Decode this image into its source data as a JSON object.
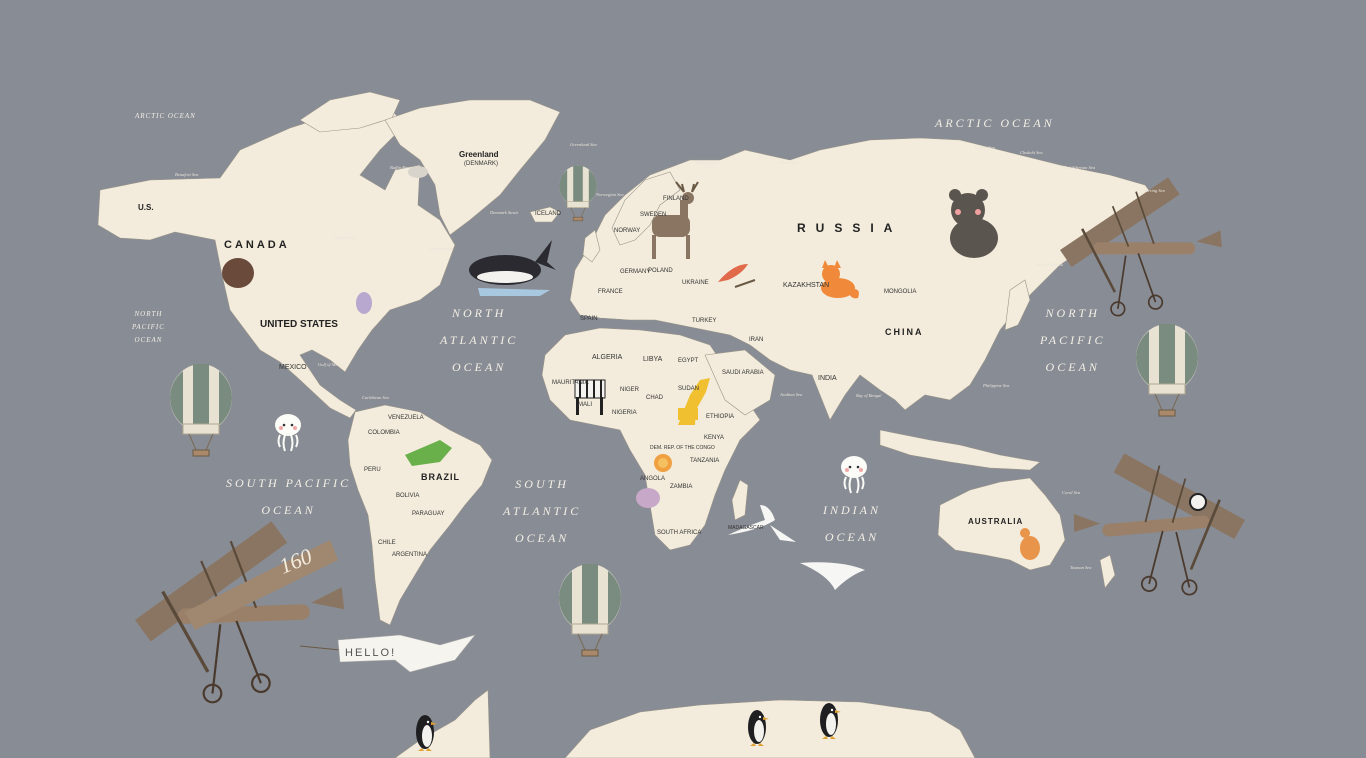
{
  "colors": {
    "sea": "#888c94",
    "land": "#f3ecdc",
    "border": "#9a948a",
    "plane": "#8a7562",
    "balloon_stripe": "#7a8c80"
  },
  "countries": {
    "canada": "CANADA",
    "us_alaska": "U.S.",
    "united_states": "UNITED STATES",
    "mexico": "MEXICO",
    "greenland": "Greenland",
    "greenland_sub": "(DENMARK)",
    "iceland": "ICELAND",
    "russia": "RUSSIA",
    "kazakhstan": "KAZAKHSTAN",
    "mongolia": "MONGOLIA",
    "china": "CHINA",
    "india": "INDIA",
    "iran": "IRAN",
    "saudi_arabia": "SAUDI ARABIA",
    "turkey": "TURKEY",
    "spain": "SPAIN",
    "france": "FRANCE",
    "germany": "GERMANY",
    "poland": "POLAND",
    "ukraine": "UKRAINE",
    "norway": "NORWAY",
    "sweden": "SWEDEN",
    "finland": "FINLAND",
    "algeria": "ALGERIA",
    "libya": "LIBYA",
    "egypt": "EGYPT",
    "niger": "NIGER",
    "chad": "CHAD",
    "sudan": "SUDAN",
    "ethiopia": "ETHIOPIA",
    "mali": "MALI",
    "nigeria": "NIGERIA",
    "kenya": "KENYA",
    "dr_congo": "DEM. REP. OF THE CONGO",
    "tanzania": "TANZANIA",
    "angola": "ANGOLA",
    "zambia": "ZAMBIA",
    "south_africa": "SOUTH AFRICA",
    "madagascar": "MADAGASCAR",
    "mauritania": "MAURITANIA",
    "brazil": "BRAZIL",
    "colombia": "COLOMBIA",
    "venezuela": "VENEZUELA",
    "peru": "PERU",
    "bolivia": "BOLIVIA",
    "argentina": "ARGENTINA",
    "paraguay": "PARAGUAY",
    "chile": "CHILE",
    "australia": "AUSTRALIA"
  },
  "oceans": {
    "arctic_left": "ARCTIC OCEAN",
    "arctic_right": "ARCTIC OCEAN",
    "north_pacific_left": [
      "NORTH",
      "PACIFIC",
      "OCEAN"
    ],
    "north_pacific_right": [
      "NORTH",
      "PACIFIC",
      "OCEAN"
    ],
    "north_atlantic": [
      "NORTH",
      "ATLANTIC",
      "OCEAN"
    ],
    "south_pacific": [
      "SOUTH PACIFIC",
      "OCEAN"
    ],
    "south_atlantic": [
      "SOUTH",
      "ATLANTIC",
      "OCEAN"
    ],
    "indian": [
      "INDIAN",
      "OCEAN"
    ]
  },
  "seas": {
    "beaufort": "Beaufort Sea",
    "baffin": "Baffin Bay",
    "hudson": "Hudson Bay",
    "labrador": "Labrador Sea",
    "greenland_sea": "Greenland Sea",
    "norwegian": "Norwegian Sea",
    "barents": "Barents Sea",
    "kara": "Kara Sea",
    "laptev": "Laptev Sea",
    "east_siberian": "East Siberian Sea",
    "chukchi": "Chukchi Sea",
    "bering": "Bering Sea",
    "okhotsk": "Sea of Okhotsk",
    "philippine": "Philippine Sea",
    "caribbean": "Caribbean Sea",
    "gulf_mexico": "Gulf of Mexico",
    "arabian": "Arabian Sea",
    "bengal": "Bay of Bengal",
    "coral": "Coral Sea",
    "tasman": "Tasman Sea",
    "denmark_strait": "Denmark Strait"
  },
  "decor": {
    "plane_number": "160",
    "banner_text": "HELLO!",
    "icons": [
      "balloon-icon",
      "plane-icon",
      "whale-icon",
      "bear-icon",
      "moose-icon",
      "deer-icon",
      "fox-icon",
      "bird-icon",
      "owl-icon",
      "zebra-icon",
      "giraffe-icon",
      "lion-icon",
      "hippo-icon",
      "crocodile-icon",
      "kangaroo-icon",
      "swan-icon",
      "jellyfish-icon",
      "penguin-icon",
      "seal-icon",
      "panda-icon",
      "bison-icon"
    ]
  }
}
